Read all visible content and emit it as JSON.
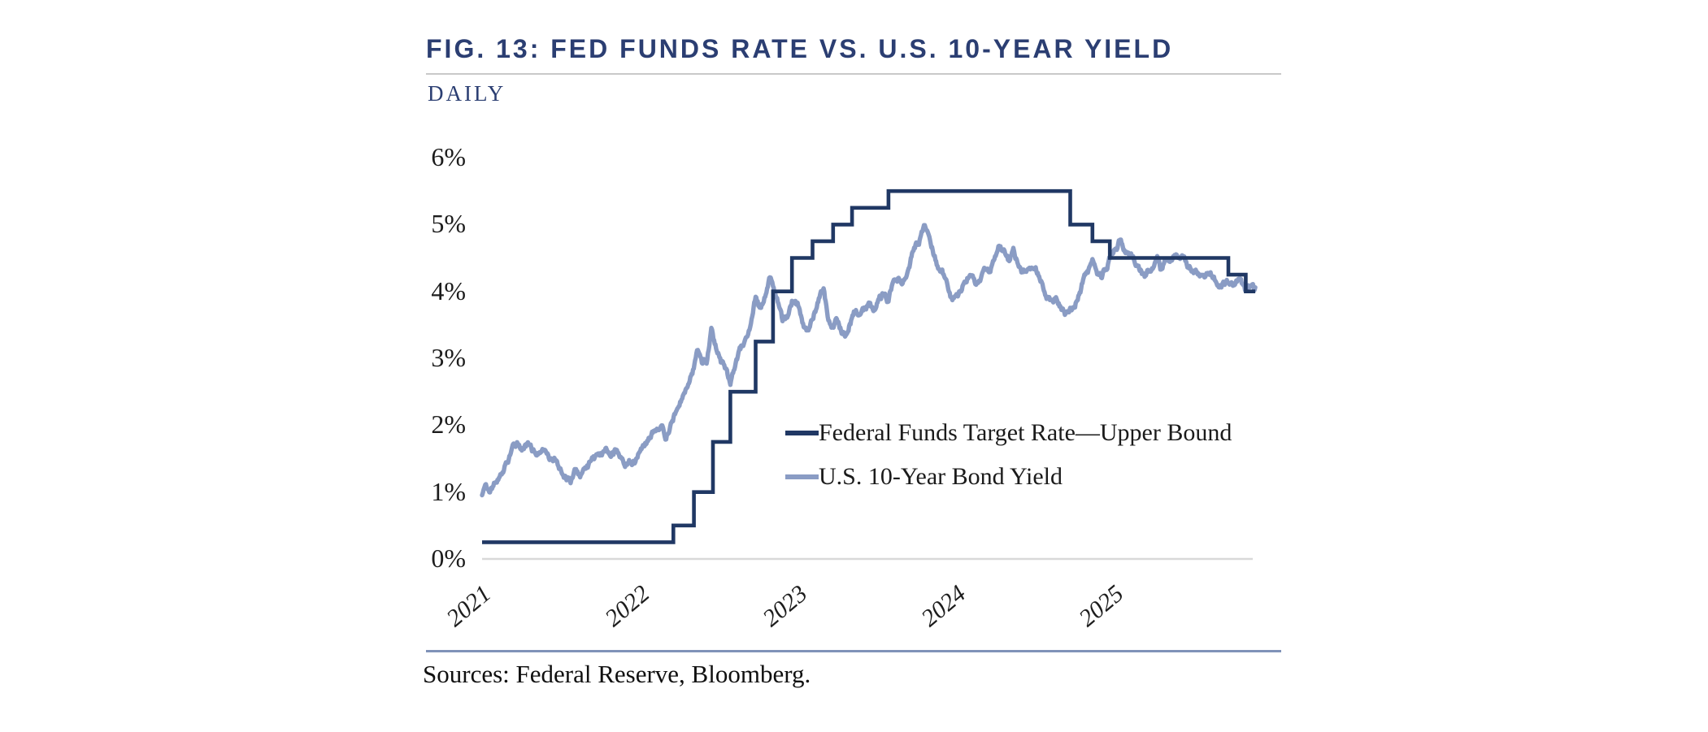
{
  "figure": {
    "title": "FIG. 13: FED FUNDS RATE VS. U.S. 10-YEAR YIELD",
    "subtitle": "DAILY",
    "sources": "Sources: Federal Reserve, Bloomberg."
  },
  "colors": {
    "title_navy": "#2b3e72",
    "rule_gray": "#c9c9c9",
    "rule_blue": "#8092b8",
    "axis_line": "#d9d9d9",
    "tick_text": "#1c1c1c"
  },
  "chart_data": {
    "type": "line",
    "title": "FIG. 13: FED FUNDS RATE VS. U.S. 10-YEAR YIELD",
    "subtitle": "DAILY",
    "xlabel": "",
    "ylabel": "",
    "xlim": [
      2021.0,
      2025.92
    ],
    "ylim": [
      0,
      6
    ],
    "grid": false,
    "legend_position": "inside-middle-right",
    "x_ticks": [
      2021,
      2022,
      2023,
      2024,
      2025
    ],
    "x_tick_labels": [
      "2021",
      "2022",
      "2023",
      "2024",
      "2025"
    ],
    "y_ticks": [
      0,
      1,
      2,
      3,
      4,
      5,
      6
    ],
    "y_tick_labels": [
      "0%",
      "1%",
      "2%",
      "3%",
      "4%",
      "5%",
      "6%"
    ],
    "series": [
      {
        "name": "Federal Funds Target Rate—Upper Bound",
        "color": "#203864",
        "style": "step-after",
        "points": [
          [
            2021.0,
            0.25
          ],
          [
            2022.21,
            0.5
          ],
          [
            2022.34,
            1.0
          ],
          [
            2022.46,
            1.75
          ],
          [
            2022.57,
            2.5
          ],
          [
            2022.73,
            3.25
          ],
          [
            2022.84,
            4.0
          ],
          [
            2022.96,
            4.5
          ],
          [
            2023.09,
            4.75
          ],
          [
            2023.22,
            5.0
          ],
          [
            2023.34,
            5.25
          ],
          [
            2023.57,
            5.5
          ],
          [
            2024.72,
            5.0
          ],
          [
            2024.86,
            4.75
          ],
          [
            2024.97,
            4.5
          ],
          [
            2025.72,
            4.25
          ],
          [
            2025.83,
            4.0
          ],
          [
            2025.89,
            4.0
          ]
        ]
      },
      {
        "name": "U.S. 10-Year Bond Yield",
        "color": "#8a9cc4",
        "style": "daily-line",
        "points": [
          [
            2021.0,
            0.92
          ],
          [
            2021.02,
            1.1
          ],
          [
            2021.05,
            1.07
          ],
          [
            2021.08,
            1.16
          ],
          [
            2021.12,
            1.3
          ],
          [
            2021.16,
            1.47
          ],
          [
            2021.19,
            1.62
          ],
          [
            2021.23,
            1.72
          ],
          [
            2021.26,
            1.65
          ],
          [
            2021.29,
            1.7
          ],
          [
            2021.32,
            1.58
          ],
          [
            2021.36,
            1.62
          ],
          [
            2021.4,
            1.56
          ],
          [
            2021.44,
            1.45
          ],
          [
            2021.47,
            1.5
          ],
          [
            2021.5,
            1.35
          ],
          [
            2021.53,
            1.25
          ],
          [
            2021.56,
            1.19
          ],
          [
            2021.59,
            1.31
          ],
          [
            2021.62,
            1.26
          ],
          [
            2021.66,
            1.33
          ],
          [
            2021.7,
            1.46
          ],
          [
            2021.74,
            1.52
          ],
          [
            2021.78,
            1.62
          ],
          [
            2021.81,
            1.55
          ],
          [
            2021.84,
            1.62
          ],
          [
            2021.87,
            1.52
          ],
          [
            2021.9,
            1.41
          ],
          [
            2021.93,
            1.46
          ],
          [
            2021.97,
            1.5
          ],
          [
            2022.0,
            1.63
          ],
          [
            2022.04,
            1.76
          ],
          [
            2022.08,
            1.92
          ],
          [
            2022.11,
            1.98
          ],
          [
            2022.14,
            2.03
          ],
          [
            2022.16,
            1.73
          ],
          [
            2022.19,
            1.99
          ],
          [
            2022.22,
            2.15
          ],
          [
            2022.24,
            2.33
          ],
          [
            2022.27,
            2.48
          ],
          [
            2022.3,
            2.65
          ],
          [
            2022.33,
            2.82
          ],
          [
            2022.36,
            3.1
          ],
          [
            2022.39,
            2.89
          ],
          [
            2022.42,
            2.95
          ],
          [
            2022.45,
            3.47
          ],
          [
            2022.48,
            3.15
          ],
          [
            2022.51,
            2.96
          ],
          [
            2022.54,
            2.78
          ],
          [
            2022.57,
            2.64
          ],
          [
            2022.6,
            2.85
          ],
          [
            2022.63,
            3.1
          ],
          [
            2022.66,
            3.25
          ],
          [
            2022.7,
            3.55
          ],
          [
            2022.73,
            3.9
          ],
          [
            2022.76,
            3.72
          ],
          [
            2022.79,
            3.95
          ],
          [
            2022.82,
            4.22
          ],
          [
            2022.84,
            4.1
          ],
          [
            2022.87,
            3.82
          ],
          [
            2022.9,
            3.55
          ],
          [
            2022.93,
            3.6
          ],
          [
            2022.96,
            3.85
          ],
          [
            2023.0,
            3.78
          ],
          [
            2023.03,
            3.52
          ],
          [
            2023.06,
            3.38
          ],
          [
            2023.09,
            3.62
          ],
          [
            2023.13,
            3.9
          ],
          [
            2023.16,
            4.06
          ],
          [
            2023.19,
            3.55
          ],
          [
            2023.21,
            3.42
          ],
          [
            2023.24,
            3.58
          ],
          [
            2023.27,
            3.42
          ],
          [
            2023.3,
            3.36
          ],
          [
            2023.33,
            3.55
          ],
          [
            2023.36,
            3.72
          ],
          [
            2023.39,
            3.64
          ],
          [
            2023.42,
            3.72
          ],
          [
            2023.45,
            3.8
          ],
          [
            2023.48,
            3.72
          ],
          [
            2023.51,
            3.86
          ],
          [
            2023.54,
            3.96
          ],
          [
            2023.57,
            3.88
          ],
          [
            2023.6,
            4.18
          ],
          [
            2023.63,
            4.22
          ],
          [
            2023.66,
            4.12
          ],
          [
            2023.69,
            4.32
          ],
          [
            2023.72,
            4.58
          ],
          [
            2023.75,
            4.7
          ],
          [
            2023.78,
            4.88
          ],
          [
            2023.8,
            4.98
          ],
          [
            2023.82,
            4.82
          ],
          [
            2023.85,
            4.62
          ],
          [
            2023.88,
            4.42
          ],
          [
            2023.91,
            4.28
          ],
          [
            2023.94,
            4.1
          ],
          [
            2023.97,
            3.86
          ],
          [
            2024.0,
            3.95
          ],
          [
            2024.03,
            4.02
          ],
          [
            2024.06,
            4.16
          ],
          [
            2024.09,
            4.28
          ],
          [
            2024.12,
            4.12
          ],
          [
            2024.15,
            4.22
          ],
          [
            2024.18,
            4.32
          ],
          [
            2024.21,
            4.22
          ],
          [
            2024.24,
            4.52
          ],
          [
            2024.27,
            4.68
          ],
          [
            2024.3,
            4.58
          ],
          [
            2024.33,
            4.44
          ],
          [
            2024.36,
            4.6
          ],
          [
            2024.39,
            4.42
          ],
          [
            2024.42,
            4.28
          ],
          [
            2024.45,
            4.32
          ],
          [
            2024.48,
            4.38
          ],
          [
            2024.51,
            4.26
          ],
          [
            2024.54,
            4.18
          ],
          [
            2024.57,
            3.95
          ],
          [
            2024.6,
            3.88
          ],
          [
            2024.63,
            3.92
          ],
          [
            2024.66,
            3.78
          ],
          [
            2024.69,
            3.66
          ],
          [
            2024.72,
            3.74
          ],
          [
            2024.75,
            3.8
          ],
          [
            2024.78,
            4.02
          ],
          [
            2024.81,
            4.22
          ],
          [
            2024.84,
            4.32
          ],
          [
            2024.86,
            4.46
          ],
          [
            2024.89,
            4.28
          ],
          [
            2024.92,
            4.22
          ],
          [
            2024.95,
            4.38
          ],
          [
            2024.98,
            4.56
          ],
          [
            2025.01,
            4.62
          ],
          [
            2025.04,
            4.78
          ],
          [
            2025.07,
            4.62
          ],
          [
            2025.1,
            4.52
          ],
          [
            2025.13,
            4.46
          ],
          [
            2025.16,
            4.28
          ],
          [
            2025.19,
            4.22
          ],
          [
            2025.22,
            4.32
          ],
          [
            2025.25,
            4.42
          ],
          [
            2025.27,
            4.48
          ],
          [
            2025.29,
            4.3
          ],
          [
            2025.32,
            4.42
          ],
          [
            2025.35,
            4.48
          ],
          [
            2025.38,
            4.52
          ],
          [
            2025.41,
            4.42
          ],
          [
            2025.44,
            4.48
          ],
          [
            2025.47,
            4.4
          ],
          [
            2025.5,
            4.32
          ],
          [
            2025.53,
            4.25
          ],
          [
            2025.56,
            4.3
          ],
          [
            2025.59,
            4.28
          ],
          [
            2025.62,
            4.22
          ],
          [
            2025.65,
            4.12
          ],
          [
            2025.68,
            4.1
          ],
          [
            2025.71,
            4.14
          ],
          [
            2025.74,
            4.08
          ],
          [
            2025.77,
            4.12
          ],
          [
            2025.8,
            4.16
          ],
          [
            2025.83,
            4.02
          ],
          [
            2025.85,
            4.08
          ],
          [
            2025.87,
            4.12
          ],
          [
            2025.89,
            4.06
          ]
        ]
      }
    ]
  }
}
